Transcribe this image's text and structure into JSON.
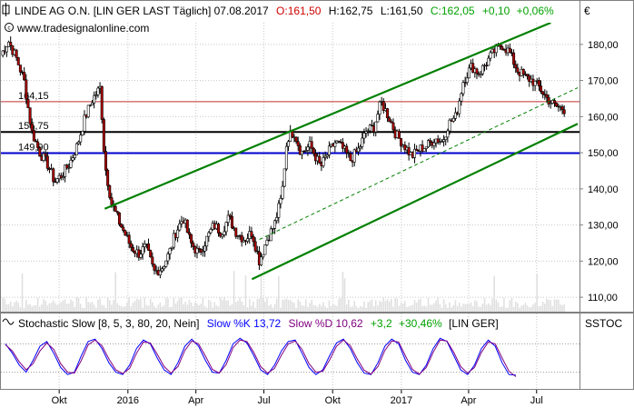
{
  "header": {
    "icon": "chart-window-icon",
    "instrument": "LINDE AG O.N. [LIN GER LAST Täglich] 07.08.2017",
    "open": "O:161,50",
    "high": "H:162,75",
    "low": "L:161,50",
    "close": "C:162,05",
    "change": "+0,10",
    "change_pct": "+0,06%",
    "currency": "€",
    "down_color": "#d00000",
    "up_color": "#00a000"
  },
  "watermark": {
    "icon": "copyright-icon",
    "text": "www.tradesignalonline.com"
  },
  "price_levels": [
    {
      "label": "164,15",
      "value": 164.15,
      "color": "#c03030"
    },
    {
      "label": "155,75",
      "value": 155.75,
      "color": "#000000"
    },
    {
      "label": "149,90",
      "value": 149.9,
      "color": "#0000cc"
    }
  ],
  "indicator": {
    "icon": "wave-icon",
    "name": "Stochastic Slow [8, 5, 3, 80, 20, Nein]",
    "k_label": "Slow %K 13,72",
    "d_label": "Slow %D 10,62",
    "change": "+3,2",
    "change_pct": "+30,46%",
    "symbol": "[LIN GER]",
    "panel_label": "SSTOC",
    "k_color": "#0000ff",
    "d_color": "#800080"
  },
  "chart_data": [
    {
      "type": "candlestick",
      "ylim": [
        106,
        186
      ],
      "yticks": [
        "110,00",
        "120,00",
        "130,00",
        "140,00",
        "150,00",
        "160,00",
        "170,00",
        "180,00"
      ],
      "ytick_values": [
        110,
        120,
        130,
        140,
        150,
        160,
        170,
        180
      ],
      "xticks": [
        "Okt",
        "2016",
        "Apr",
        "Jul",
        "Okt",
        "2017",
        "Apr",
        "Jul"
      ],
      "xtick_values": [
        "2015-10",
        "2016-01",
        "2016-04",
        "2016-07",
        "2016-10",
        "2017-01",
        "2017-04",
        "2017-07"
      ],
      "x_range": [
        "2015-07-15",
        "2017-08-25"
      ],
      "grid": true,
      "up_color": "#ffffff",
      "down_color": "#b00000",
      "close_path": [
        [
          "2015-07-15",
          177
        ],
        [
          "2015-07-25",
          181
        ],
        [
          "2015-08-05",
          176
        ],
        [
          "2015-08-15",
          170
        ],
        [
          "2015-08-25",
          156
        ],
        [
          "2015-09-05",
          150
        ],
        [
          "2015-09-15",
          147
        ],
        [
          "2015-09-25",
          142
        ],
        [
          "2015-10-05",
          144
        ],
        [
          "2015-10-15",
          147
        ],
        [
          "2015-10-25",
          152
        ],
        [
          "2015-11-05",
          160
        ],
        [
          "2015-11-15",
          165
        ],
        [
          "2015-11-25",
          168
        ],
        [
          "2015-12-01",
          147
        ],
        [
          "2015-12-10",
          136
        ],
        [
          "2015-12-20",
          131
        ],
        [
          "2016-01-05",
          124
        ],
        [
          "2016-01-15",
          122
        ],
        [
          "2016-01-25",
          124
        ],
        [
          "2016-02-05",
          117
        ],
        [
          "2016-02-15",
          118
        ],
        [
          "2016-02-25",
          122
        ],
        [
          "2016-03-05",
          128
        ],
        [
          "2016-03-15",
          132
        ],
        [
          "2016-03-25",
          125
        ],
        [
          "2016-04-05",
          122
        ],
        [
          "2016-04-15",
          126
        ],
        [
          "2016-04-25",
          130
        ],
        [
          "2016-05-05",
          128
        ],
        [
          "2016-05-15",
          132
        ],
        [
          "2016-05-25",
          128
        ],
        [
          "2016-06-05",
          126
        ],
        [
          "2016-06-15",
          128
        ],
        [
          "2016-06-25",
          120
        ],
        [
          "2016-07-05",
          126
        ],
        [
          "2016-07-15",
          130
        ],
        [
          "2016-07-25",
          138
        ],
        [
          "2016-08-01",
          154
        ],
        [
          "2016-08-10",
          156
        ],
        [
          "2016-08-20",
          150
        ],
        [
          "2016-09-01",
          152
        ],
        [
          "2016-09-15",
          146
        ],
        [
          "2016-09-25",
          150
        ],
        [
          "2016-10-05",
          153
        ],
        [
          "2016-10-15",
          151
        ],
        [
          "2016-10-25",
          148
        ],
        [
          "2016-11-05",
          151
        ],
        [
          "2016-11-15",
          156
        ],
        [
          "2016-11-25",
          157
        ],
        [
          "2016-12-05",
          164
        ],
        [
          "2016-12-15",
          160
        ],
        [
          "2016-12-25",
          155
        ],
        [
          "2017-01-05",
          152
        ],
        [
          "2017-01-15",
          149
        ],
        [
          "2017-01-25",
          151
        ],
        [
          "2017-02-05",
          152
        ],
        [
          "2017-02-15",
          154
        ],
        [
          "2017-02-25",
          153
        ],
        [
          "2017-03-05",
          158
        ],
        [
          "2017-03-15",
          160
        ],
        [
          "2017-03-25",
          170
        ],
        [
          "2017-04-05",
          174
        ],
        [
          "2017-04-15",
          172
        ],
        [
          "2017-04-25",
          175
        ],
        [
          "2017-05-05",
          178
        ],
        [
          "2017-05-15",
          180
        ],
        [
          "2017-05-25",
          178
        ],
        [
          "2017-06-05",
          173
        ],
        [
          "2017-06-15",
          171
        ],
        [
          "2017-06-25",
          170
        ],
        [
          "2017-07-05",
          168
        ],
        [
          "2017-07-15",
          165
        ],
        [
          "2017-07-25",
          163
        ],
        [
          "2017-08-07",
          162.05
        ]
      ],
      "channel_lines": [
        {
          "style": "solid",
          "color": "#008000",
          "points": [
            [
              "2015-12-01",
              134.5
            ],
            [
              "2017-07-20",
              186
            ]
          ]
        },
        {
          "style": "solid",
          "color": "#008000",
          "points": [
            [
              "2016-06-15",
              115
            ],
            [
              "2017-08-25",
              158
            ]
          ]
        },
        {
          "style": "dashed",
          "color": "#008000",
          "points": [
            [
              "2016-06-25",
              126
            ],
            [
              "2017-08-25",
              168
            ]
          ]
        }
      ]
    },
    {
      "type": "line",
      "ylim": [
        0,
        100
      ],
      "grid": false,
      "levels": [
        80,
        20
      ],
      "series": [
        {
          "name": "Slow %K",
          "color": "#0000ff",
          "values": [
            80,
            60,
            35,
            20,
            45,
            75,
            85,
            60,
            30,
            15,
            20,
            55,
            85,
            90,
            70,
            40,
            20,
            15,
            35,
            70,
            88,
            80,
            50,
            25,
            15,
            40,
            75,
            90,
            75,
            45,
            20,
            18,
            45,
            80,
            92,
            82,
            55,
            25,
            15,
            35,
            65,
            85,
            88,
            60,
            30,
            15,
            25,
            55,
            82,
            90,
            70,
            40,
            18,
            15,
            40,
            75,
            90,
            80,
            45,
            20,
            15,
            35,
            70,
            92,
            85,
            55,
            25,
            15,
            35,
            70,
            88,
            75,
            40,
            15,
            13.72
          ]
        },
        {
          "name": "Slow %D",
          "color": "#800080",
          "values": [
            78,
            65,
            42,
            25,
            38,
            65,
            82,
            68,
            38,
            20,
            18,
            45,
            78,
            88,
            76,
            48,
            25,
            17,
            28,
            60,
            84,
            82,
            58,
            32,
            18,
            32,
            66,
            86,
            80,
            54,
            26,
            18,
            36,
            72,
            88,
            85,
            62,
            32,
            18,
            28,
            56,
            80,
            86,
            68,
            38,
            20,
            22,
            46,
            75,
            88,
            76,
            48,
            24,
            16,
            32,
            66,
            86,
            84,
            54,
            26,
            16,
            30,
            62,
            88,
            86,
            62,
            32,
            18,
            30,
            62,
            84,
            80,
            50,
            22,
            10.62
          ]
        }
      ]
    }
  ]
}
